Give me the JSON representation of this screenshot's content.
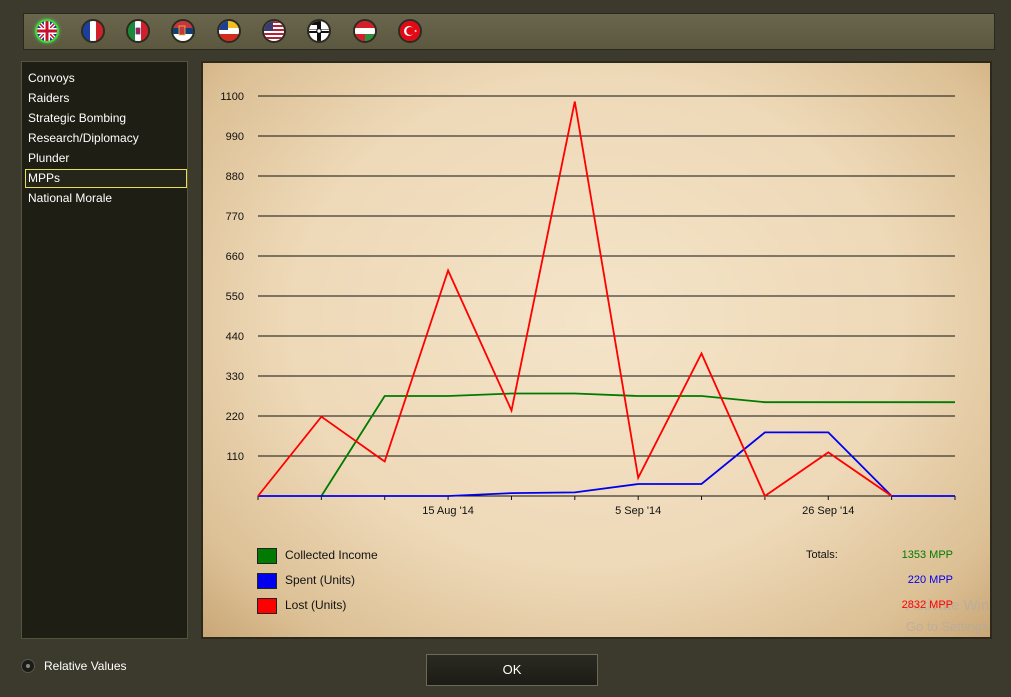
{
  "flags": [
    {
      "icon": "uk-flag-icon",
      "selected": true
    },
    {
      "icon": "france-flag-icon",
      "selected": false
    },
    {
      "icon": "italy-flag-icon",
      "selected": false
    },
    {
      "icon": "serbia-flag-icon",
      "selected": false
    },
    {
      "icon": "russia-flag-icon",
      "selected": false
    },
    {
      "icon": "usa-flag-icon",
      "selected": false
    },
    {
      "icon": "germany-flag-icon",
      "selected": false
    },
    {
      "icon": "austria-hungary-flag-icon",
      "selected": false
    },
    {
      "icon": "turkey-flag-icon",
      "selected": false
    }
  ],
  "sidebar": {
    "items": [
      {
        "label": "Convoys",
        "active": false
      },
      {
        "label": "Raiders",
        "active": false
      },
      {
        "label": "Strategic Bombing",
        "active": false
      },
      {
        "label": "Research/Diplomacy",
        "active": false
      },
      {
        "label": "Plunder",
        "active": false
      },
      {
        "label": "MPPs",
        "active": true
      },
      {
        "label": "National Morale",
        "active": false
      }
    ]
  },
  "chart_data": {
    "type": "line",
    "x": [
      0,
      1,
      2,
      3,
      4,
      5,
      6,
      7,
      8,
      9,
      10,
      11
    ],
    "x_tick_labels": [
      {
        "at": 3,
        "label": "15 Aug '14"
      },
      {
        "at": 6,
        "label": "5 Sep '14"
      },
      {
        "at": 9,
        "label": "26 Sep '14"
      }
    ],
    "ylim": [
      0,
      1100
    ],
    "y_ticks": [
      110,
      220,
      330,
      440,
      550,
      660,
      770,
      880,
      990,
      1100
    ],
    "grid": true,
    "series": [
      {
        "name": "Collected Income",
        "color": "#007a00",
        "values": [
          null,
          0,
          275,
          275,
          282,
          282,
          275,
          275,
          258,
          258,
          258,
          258
        ]
      },
      {
        "name": "Spent (Units)",
        "color": "#0000ee",
        "values": [
          0,
          0,
          0,
          0,
          8,
          10,
          33,
          33,
          175,
          175,
          0,
          0
        ]
      },
      {
        "name": "Lost (Units)",
        "color": "#ff0000",
        "values": [
          0,
          218,
          95,
          620,
          235,
          1085,
          50,
          392,
          0,
          120,
          0,
          null
        ]
      }
    ]
  },
  "legend": {
    "totals_label": "Totals:",
    "items": [
      {
        "label": "Collected Income",
        "color": "#007a00",
        "total": "1353 MPP"
      },
      {
        "label": "Spent (Units)",
        "color": "#0000ee",
        "total": "220 MPP"
      },
      {
        "label": "Lost (Units)",
        "color": "#ff0000",
        "total": "2832 MPP"
      }
    ]
  },
  "watermark": {
    "line1": "Activate Windows",
    "line2": "Go to Settings to activate Windows."
  },
  "relative_values_label": "Relative Values",
  "ok_label": "OK"
}
